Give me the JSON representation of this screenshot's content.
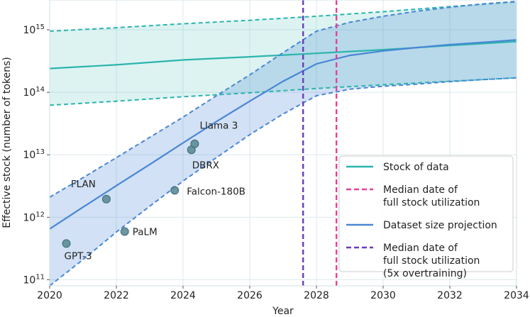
{
  "chart_data": {
    "type": "line",
    "title": "",
    "xlabel": "Year",
    "ylabel": "Effective stock (number of tokens)",
    "xlim": [
      2020,
      2034
    ],
    "ylim": [
      80000000000,
      3000000000000000
    ],
    "yscale": "log",
    "grid": true,
    "legend_position": "bottom-right",
    "x_ticks": [
      2020,
      2022,
      2024,
      2026,
      2028,
      2030,
      2032,
      2034
    ],
    "x_tick_labels": [
      "2020",
      "2022",
      "2024",
      "2026",
      "2028",
      "2030",
      "2032",
      "2034"
    ],
    "y_ticks": [
      100000000000,
      1000000000000,
      10000000000000,
      100000000000000,
      1000000000000000
    ],
    "y_tick_labels": [
      {
        "base": "10",
        "exp": "11"
      },
      {
        "base": "10",
        "exp": "12"
      },
      {
        "base": "10",
        "exp": "13"
      },
      {
        "base": "10",
        "exp": "14"
      },
      {
        "base": "10",
        "exp": "15"
      }
    ],
    "series": [
      {
        "name": "Stock of data",
        "style": "solid",
        "color": "#2bb5ad",
        "x": [
          2020,
          2022,
          2024,
          2026,
          2028,
          2030,
          2032,
          2034
        ],
        "y": [
          240000000000000,
          275000000000000,
          330000000000000,
          370000000000000,
          420000000000000,
          480000000000000,
          560000000000000,
          650000000000000
        ],
        "lower": [
          62000000000000,
          72000000000000,
          85000000000000,
          98000000000000,
          115000000000000,
          132000000000000,
          150000000000000,
          170000000000000
        ],
        "upper": [
          950000000000000,
          1080000000000000,
          1250000000000000,
          1420000000000000,
          1650000000000000,
          1950000000000000,
          2350000000000000,
          2800000000000000
        ]
      },
      {
        "name": "Dataset size projection",
        "style": "solid",
        "color": "#4a86d6",
        "x": [
          2020,
          2021,
          2022,
          2023,
          2024,
          2025,
          2026,
          2027,
          2028,
          2029,
          2030,
          2031,
          2032,
          2033,
          2034
        ],
        "y": [
          650000000000,
          1450000000000,
          3200000000000,
          7000000000000,
          15500000000000,
          34000000000000,
          72000000000000,
          150000000000000,
          285000000000000,
          390000000000000,
          460000000000000,
          520000000000000,
          580000000000000,
          630000000000000,
          690000000000000
        ],
        "lower": [
          80000000000,
          210000000000,
          580000000000,
          1500000000000,
          3800000000000,
          9000000000000,
          21000000000000,
          45000000000000,
          88000000000000,
          112000000000000,
          125000000000000,
          135000000000000,
          148000000000000,
          160000000000000,
          170000000000000
        ],
        "upper": [
          2100000000000,
          4300000000000,
          9000000000000,
          19000000000000,
          40000000000000,
          88000000000000,
          190000000000000,
          430000000000000,
          950000000000000,
          1320000000000000,
          1650000000000000,
          1980000000000000,
          2300000000000000,
          2600000000000000,
          2850000000000000
        ]
      }
    ],
    "vlines": [
      {
        "name": "Median date of full stock utilization",
        "x": 2028.6,
        "style": "dashed",
        "color": "#e0449a"
      },
      {
        "name": "Median date of full stock utilization (5x overtraining)",
        "x": 2027.6,
        "style": "dashed",
        "color": "#6a3fb8"
      }
    ],
    "points": [
      {
        "label": "GPT-3",
        "x": 2020.5,
        "y": 380000000000
      },
      {
        "label": "FLAN",
        "x": 2021.7,
        "y": 1950000000000
      },
      {
        "label": "PaLM",
        "x": 2022.25,
        "y": 590000000000
      },
      {
        "label": "Falcon-180B",
        "x": 2023.75,
        "y": 2700000000000
      },
      {
        "label": "DBRX",
        "x": 2024.25,
        "y": 12000000000000
      },
      {
        "label": "Llama 3",
        "x": 2024.35,
        "y": 15000000000000
      }
    ],
    "legend": [
      {
        "label_lines": [
          "Stock of data"
        ],
        "style": "solid",
        "color": "#2bb5ad"
      },
      {
        "label_lines": [
          "Median date of",
          "full stock utilization"
        ],
        "style": "dashed",
        "color": "#e0449a"
      },
      {
        "label_lines": [
          "Dataset size projection"
        ],
        "style": "solid",
        "color": "#4a86d6"
      },
      {
        "label_lines": [
          "Median date of",
          "full stock utilization",
          "(5x overtraining)"
        ],
        "style": "dashed",
        "color": "#6a3fb8"
      }
    ]
  }
}
